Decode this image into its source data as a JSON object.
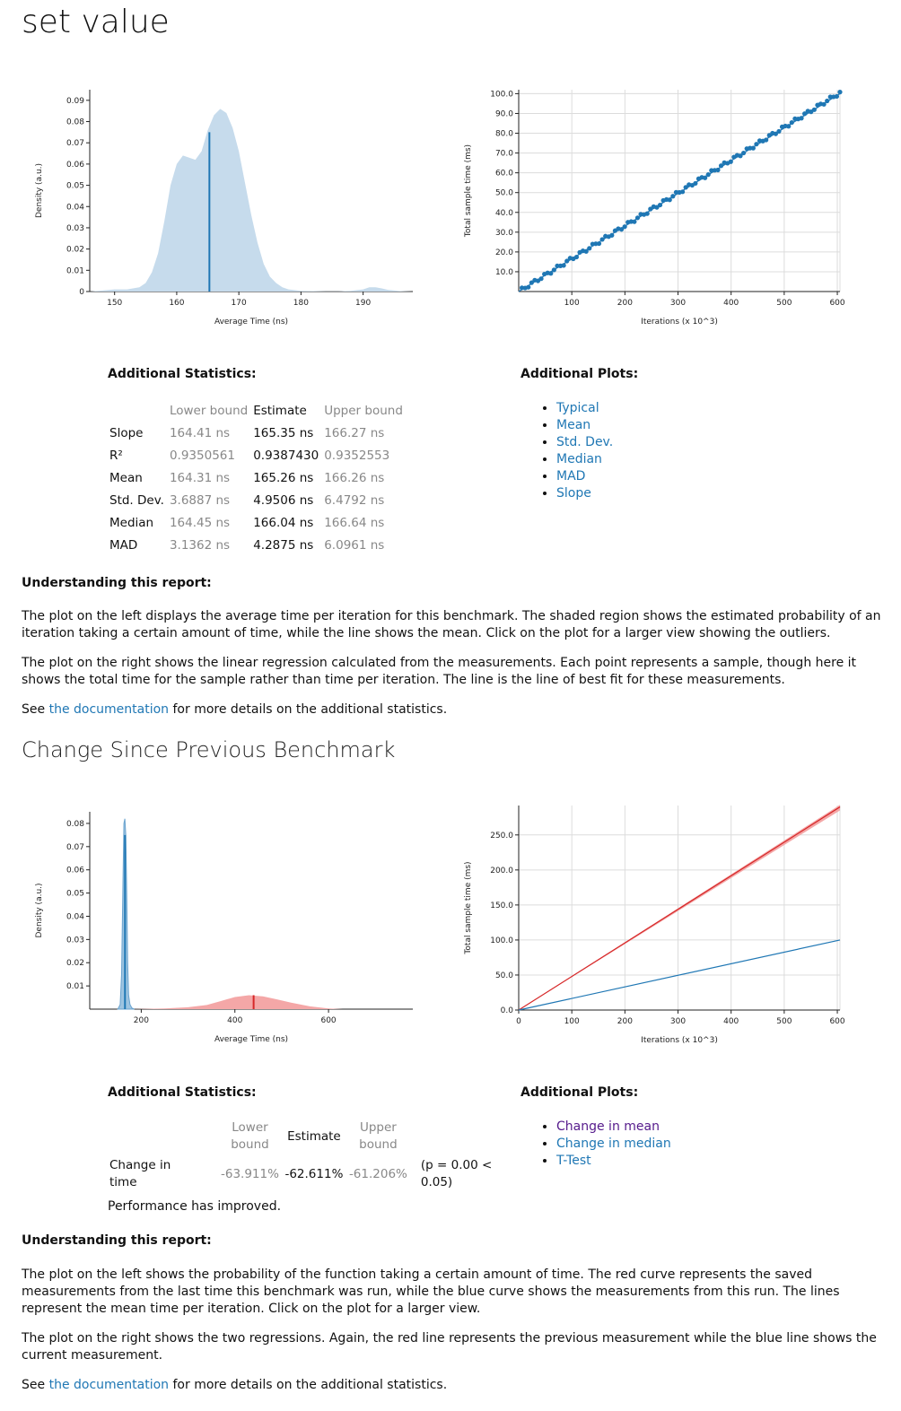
{
  "page": {
    "title": "set value",
    "change_title": "Change Since Previous Benchmark"
  },
  "section1": {
    "stats_heading": "Additional Statistics:",
    "plots_heading": "Additional Plots:",
    "table_headers": [
      "Lower bound",
      "Estimate",
      "Upper bound"
    ],
    "rows": [
      {
        "name": "Slope",
        "lower": "164.41 ns",
        "estimate": "165.35 ns",
        "upper": "166.27 ns"
      },
      {
        "name": "R²",
        "lower": "0.9350561",
        "estimate": "0.9387430",
        "upper": "0.9352553"
      },
      {
        "name": "Mean",
        "lower": "164.31 ns",
        "estimate": "165.26 ns",
        "upper": "166.26 ns"
      },
      {
        "name": "Std. Dev.",
        "lower": "3.6887 ns",
        "estimate": "4.9506 ns",
        "upper": "6.4792 ns"
      },
      {
        "name": "Median",
        "lower": "164.45 ns",
        "estimate": "166.04 ns",
        "upper": "166.64 ns"
      },
      {
        "name": "MAD",
        "lower": "3.1362 ns",
        "estimate": "4.2875 ns",
        "upper": "6.0961 ns"
      }
    ],
    "plots_links": [
      "Typical",
      "Mean",
      "Std. Dev.",
      "Median",
      "MAD",
      "Slope"
    ],
    "understanding_heading": "Understanding this report:",
    "para1": "The plot on the left displays the average time per iteration for this benchmark. The shaded region shows the estimated probability of an iteration taking a certain amount of time, while the line shows the mean. Click on the plot for a larger view showing the outliers.",
    "para2": "The plot on the right shows the linear regression calculated from the measurements. Each point represents a sample, though here it shows the total time for the sample rather than time per iteration. The line is the line of best fit for these measurements.",
    "see_prefix": "See ",
    "see_link": "the documentation",
    "see_suffix": " for more details on the additional statistics."
  },
  "section2": {
    "stats_heading": "Additional Statistics:",
    "plots_heading": "Additional Plots:",
    "header_lower_1": "Lower",
    "header_lower_2": "bound",
    "header_estimate": "Estimate",
    "header_upper_1": "Upper",
    "header_upper_2": "bound",
    "row_name_1": "Change in",
    "row_name_2": "time",
    "lower": "-63.911%",
    "estimate": "-62.611%",
    "upper": "-61.206%",
    "p_1": "(p = 0.00 <",
    "p_2": "0.05)",
    "verdict": "Performance has improved.",
    "plots_links": [
      "Change in mean",
      "Change in median",
      "T-Test"
    ],
    "understanding_heading": "Understanding this report:",
    "para1": "The plot on the left shows the probability of the function taking a certain amount of time. The red curve represents the saved measurements from the last time this benchmark was run, while the blue curve shows the measurements from this run. The lines represent the mean time per iteration. Click on the plot for a larger view.",
    "para2": "The plot on the right shows the two regressions. Again, the red line represents the previous measurement while the blue line shows the current measurement.",
    "see_prefix": "See ",
    "see_link": "the documentation",
    "see_suffix": " for more details on the additional statistics."
  },
  "colors": {
    "blue_fill": "#c6dbec",
    "blue_line": "#1f77b4",
    "red_fill": "#f4a7a7",
    "red_line": "#d62728",
    "link": "#1f77b4",
    "visited": "#551a8b"
  },
  "chart_data": [
    {
      "type": "area",
      "id": "pdf1",
      "xlabel": "Average Time (ns)",
      "ylabel": "Density (a.u.)",
      "xlim": [
        146,
        198
      ],
      "ylim": [
        0,
        0.095
      ],
      "xticks": [
        150,
        160,
        170,
        180,
        190
      ],
      "yticks": [
        0,
        0.01,
        0.02,
        0.03,
        0.04,
        0.05,
        0.06,
        0.07,
        0.08,
        0.09
      ],
      "yticklabels": [
        "0",
        "0.01",
        "0.02",
        "0.03",
        "0.04",
        "0.05",
        "0.06",
        "0.07",
        "0.08",
        "0.09"
      ],
      "series": [
        {
          "x": [
            146,
            148,
            150,
            152,
            154,
            155,
            156,
            157,
            158,
            159,
            160,
            161,
            162,
            163,
            164,
            165,
            166,
            167,
            168,
            169,
            170,
            171,
            172,
            173,
            174,
            175,
            176,
            177,
            178,
            180,
            182,
            184,
            186,
            188,
            190,
            191,
            192,
            193,
            194,
            196,
            198
          ],
          "y": [
            0,
            0.0005,
            0.001,
            0.001,
            0.002,
            0.004,
            0.009,
            0.018,
            0.033,
            0.05,
            0.06,
            0.064,
            0.063,
            0.062,
            0.066,
            0.076,
            0.083,
            0.086,
            0.084,
            0.077,
            0.066,
            0.051,
            0.036,
            0.023,
            0.013,
            0.007,
            0.004,
            0.002,
            0.001,
            0.0003,
            0.0002,
            0.0001,
            0.0001,
            0.0003,
            0.001,
            0.002,
            0.002,
            0.0015,
            0.0008,
            0.0002,
            0
          ]
        }
      ],
      "mean_line": 165.26,
      "mean_height": 0.075
    },
    {
      "type": "scatter",
      "id": "reg1",
      "xlabel": "Iterations (x 10^3)",
      "ylabel": "Total sample time (ms)",
      "xlim": [
        0,
        605
      ],
      "ylim": [
        0,
        102
      ],
      "xticks": [
        100,
        200,
        300,
        400,
        500,
        600
      ],
      "yticks": [
        10,
        20,
        30,
        40,
        50,
        60,
        70,
        80,
        90,
        100
      ],
      "yticklabels": [
        "10.0",
        "20.0",
        "30.0",
        "40.0",
        "50.0",
        "60.0",
        "70.0",
        "80.0",
        "90.0",
        "100.0"
      ],
      "fit_line": {
        "x": [
          0,
          605
        ],
        "y": [
          0,
          100.0
        ]
      },
      "n_points": 100,
      "x_max": 605,
      "y_max": 100.5
    },
    {
      "type": "area",
      "id": "pdf2",
      "xlabel": "Average Time (ns)",
      "ylabel": "Density (a.u.)",
      "xlim": [
        90,
        780
      ],
      "ylim": [
        0,
        0.085
      ],
      "xticks": [
        200,
        400,
        600
      ],
      "yticks": [
        0.01,
        0.02,
        0.03,
        0.04,
        0.05,
        0.06,
        0.07,
        0.08
      ],
      "yticklabels": [
        "0.01",
        "0.02",
        "0.03",
        "0.04",
        "0.05",
        "0.06",
        "0.07",
        "0.08"
      ],
      "series": [
        {
          "name": "",
          "x": [
            150,
            155,
            158,
            161,
            163,
            165,
            167,
            169,
            171,
            173,
            176,
            180,
            185
          ],
          "y": [
            0,
            0.002,
            0.015,
            0.055,
            0.08,
            0.082,
            0.075,
            0.05,
            0.02,
            0.006,
            0.002,
            0.0005,
            0
          ]
        },
        {
          "name": "",
          "x": [
            180,
            250,
            300,
            340,
            370,
            400,
            430,
            460,
            490,
            520,
            560,
            600,
            630
          ],
          "y": [
            0,
            0.0003,
            0.0008,
            0.0018,
            0.0035,
            0.0052,
            0.006,
            0.0055,
            0.0042,
            0.0028,
            0.0012,
            0.0003,
            0
          ]
        }
      ],
      "mean_lines": [
        {
          "x": 165.26,
          "height": 0.075
        },
        {
          "x": 440,
          "height": 0.006
        }
      ]
    },
    {
      "type": "line",
      "id": "reg2",
      "xlabel": "Iterations (x 10^3)",
      "ylabel": "Total sample time (ms)",
      "xlim": [
        0,
        605
      ],
      "ylim": [
        0,
        292
      ],
      "xticks": [
        0,
        100,
        200,
        300,
        400,
        500,
        600
      ],
      "yticks": [
        0,
        50,
        100,
        150,
        200,
        250
      ],
      "yticklabels": [
        "0.0",
        "50.0",
        "100.0",
        "150.0",
        "200.0",
        "250.0"
      ],
      "series": [
        {
          "name": "",
          "x": [
            0,
            605
          ],
          "y": [
            0,
            290
          ]
        },
        {
          "name": "",
          "x": [
            0,
            605
          ],
          "y": [
            0,
            100
          ]
        }
      ]
    }
  ]
}
